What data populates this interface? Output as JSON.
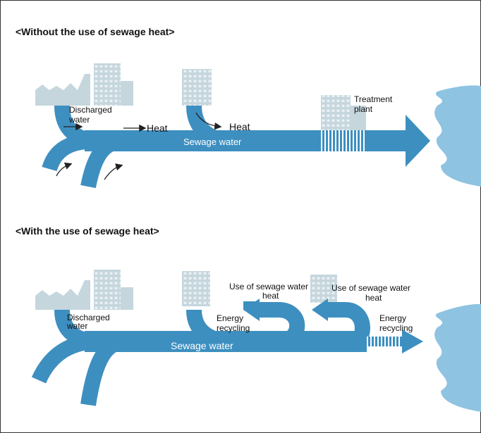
{
  "top": {
    "title": "<Without the use of sewage heat>",
    "discharged_water": [
      "Discharged",
      "water"
    ],
    "heat_1": "Heat",
    "heat_2": "Heat",
    "sewage_water": "Sewage water",
    "treatment_plant": [
      "Treatment",
      "plant"
    ]
  },
  "bottom": {
    "title": "<With the use of sewage heat>",
    "discharged_water": [
      "Discharged",
      "water"
    ],
    "use_heat_1": [
      "Use of sewage water",
      "heat"
    ],
    "energy_recycling_1": [
      "Energy",
      "recycling"
    ],
    "use_heat_2": [
      "Use of sewage water",
      "heat"
    ],
    "energy_recycling_2": [
      "Energy",
      "recycling"
    ],
    "sewage_water": "Sewage water"
  }
}
